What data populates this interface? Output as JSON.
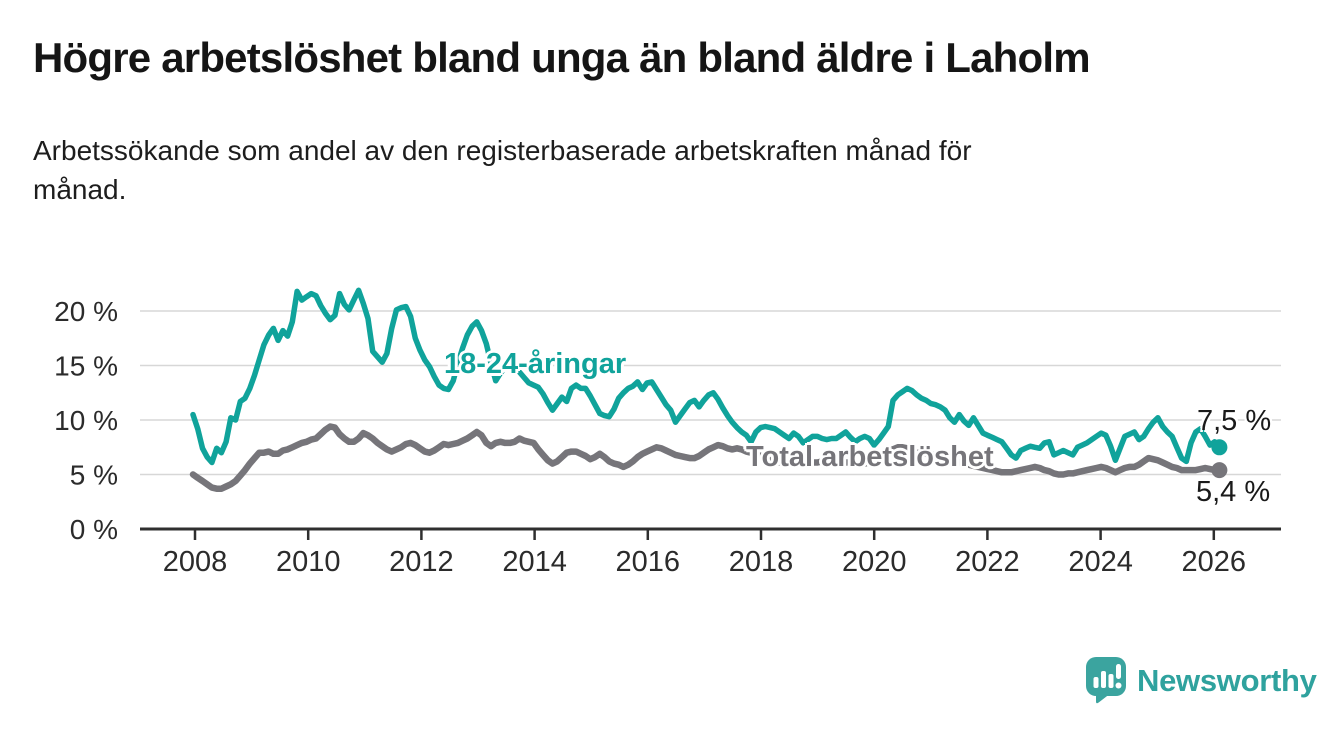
{
  "header": {
    "title": "Högre arbetslöshet bland unga än bland äldre i Laholm",
    "subtitle": "Arbetssökande som andel av den registerbaserade arbetskraften månad för\nmånad."
  },
  "chart_data": {
    "type": "line",
    "title": "Högre arbetslöshet bland unga än bland äldre i Laholm",
    "unit": "%",
    "frequency": "monthly",
    "x_start": "2008-01",
    "x_end": "2026-02",
    "grid": true,
    "ylim": [
      0,
      22.5
    ],
    "y_tick_values": [
      0,
      5,
      10,
      15,
      20
    ],
    "y_tick_suffix": " %",
    "x_tick_years": [
      2008,
      2010,
      2012,
      2014,
      2016,
      2018,
      2020,
      2022,
      2024,
      2026
    ],
    "series": [
      {
        "name": "18-24-åringar",
        "color": "#10a39b",
        "end_label": "7,5 %",
        "end_value": 7.5,
        "values": [
          10.5,
          9.2,
          7.4,
          6.6,
          6.1,
          7.4,
          7.0,
          8.0,
          10.2,
          10.0,
          11.7,
          12.0,
          12.9,
          14.1,
          15.5,
          16.9,
          17.8,
          18.4,
          17.3,
          18.2,
          17.7,
          19.0,
          21.8,
          21.0,
          21.3,
          21.6,
          21.4,
          20.5,
          19.8,
          19.2,
          19.6,
          21.6,
          20.6,
          20.1,
          21.0,
          21.9,
          20.7,
          19.3,
          16.3,
          15.8,
          15.3,
          16.1,
          18.4,
          20.1,
          20.3,
          20.4,
          19.5,
          17.5,
          16.4,
          15.5,
          14.9,
          14.0,
          13.2,
          12.9,
          12.8,
          13.6,
          15.2,
          16.6,
          17.8,
          18.6,
          19.0,
          18.2,
          17.0,
          15.2,
          13.6,
          14.3,
          14.9,
          15.1,
          14.8,
          14.4,
          13.9,
          13.4,
          13.2,
          13.0,
          12.4,
          11.6,
          10.9,
          11.5,
          12.1,
          11.7,
          12.9,
          13.2,
          12.9,
          12.9,
          12.2,
          11.4,
          10.6,
          10.4,
          10.3,
          11.0,
          12.0,
          12.5,
          12.9,
          13.1,
          13.5,
          12.8,
          13.4,
          13.5,
          12.8,
          12.1,
          11.4,
          10.9,
          9.8,
          10.4,
          11.0,
          11.6,
          11.8,
          11.2,
          11.8,
          12.3,
          12.5,
          11.9,
          11.1,
          10.4,
          9.8,
          9.3,
          8.9,
          8.6,
          8.0,
          8.9,
          9.3,
          9.4,
          9.3,
          9.2,
          8.9,
          8.6,
          8.3,
          8.8,
          8.5,
          7.9,
          8.2,
          8.5,
          8.5,
          8.3,
          8.2,
          8.3,
          8.3,
          8.6,
          8.9,
          8.4,
          8.0,
          8.3,
          8.5,
          8.3,
          7.7,
          8.2,
          8.8,
          9.4,
          11.8,
          12.3,
          12.6,
          12.9,
          12.7,
          12.3,
          12.0,
          11.8,
          11.5,
          11.4,
          11.2,
          10.9,
          10.2,
          9.8,
          10.5,
          9.9,
          9.5,
          10.2,
          9.5,
          8.8,
          8.6,
          8.4,
          8.2,
          8.0,
          7.4,
          6.8,
          6.5,
          7.2,
          7.4,
          7.6,
          7.5,
          7.4,
          7.9,
          8.0,
          6.8,
          7.0,
          7.2,
          7.0,
          6.8,
          7.5,
          7.7,
          7.9,
          8.2,
          8.5,
          8.8,
          8.6,
          7.6,
          6.3,
          7.4,
          8.5,
          8.7,
          8.9,
          8.2,
          8.5,
          9.2,
          9.8,
          10.2,
          9.4,
          8.9,
          8.5,
          7.5,
          6.5,
          6.2,
          7.9,
          8.9,
          9.2,
          8.5,
          7.7,
          8.0,
          7.5
        ]
      },
      {
        "name": "Total arbetslöshet",
        "color": "#76757a",
        "end_label": "5,4 %",
        "end_value": 5.4,
        "values": [
          5.0,
          4.7,
          4.4,
          4.1,
          3.8,
          3.7,
          3.7,
          3.9,
          4.1,
          4.4,
          4.9,
          5.4,
          6.0,
          6.5,
          7.0,
          7.0,
          7.1,
          6.9,
          6.9,
          7.2,
          7.3,
          7.5,
          7.7,
          7.9,
          8.0,
          8.2,
          8.3,
          8.7,
          9.1,
          9.4,
          9.3,
          8.7,
          8.3,
          8.0,
          8.0,
          8.3,
          8.8,
          8.6,
          8.3,
          7.9,
          7.6,
          7.3,
          7.1,
          7.3,
          7.5,
          7.8,
          7.9,
          7.7,
          7.4,
          7.1,
          7.0,
          7.2,
          7.5,
          7.8,
          7.7,
          7.8,
          7.9,
          8.1,
          8.3,
          8.6,
          8.9,
          8.6,
          7.9,
          7.6,
          7.9,
          8.0,
          7.9,
          7.9,
          8.0,
          8.3,
          8.1,
          8.0,
          7.9,
          7.3,
          6.8,
          6.3,
          6.0,
          6.2,
          6.6,
          7.0,
          7.1,
          7.1,
          6.9,
          6.7,
          6.4,
          6.6,
          6.9,
          6.6,
          6.2,
          6.0,
          5.9,
          5.7,
          5.9,
          6.2,
          6.6,
          6.9,
          7.1,
          7.3,
          7.5,
          7.4,
          7.2,
          7.0,
          6.8,
          6.7,
          6.6,
          6.5,
          6.5,
          6.7,
          7.0,
          7.3,
          7.5,
          7.7,
          7.6,
          7.4,
          7.3,
          7.4,
          7.3,
          7.1,
          7.0,
          6.9,
          6.7,
          6.5,
          6.3,
          6.2,
          6.1,
          6.0,
          6.0,
          6.1,
          6.2,
          6.2,
          6.1,
          6.1,
          6.1,
          6.2,
          6.2,
          6.1,
          6.0,
          6.0,
          6.1,
          6.1,
          6.0,
          5.9,
          6.0,
          6.1,
          6.2,
          6.3,
          6.6,
          7.0,
          7.3,
          7.5,
          7.5,
          7.4,
          7.2,
          7.0,
          6.9,
          6.9,
          6.8,
          6.8,
          6.7,
          6.5,
          6.3,
          6.2,
          6.1,
          6.0,
          5.9,
          5.8,
          5.7,
          5.6,
          5.5,
          5.4,
          5.3,
          5.2,
          5.2,
          5.2,
          5.3,
          5.4,
          5.5,
          5.6,
          5.7,
          5.6,
          5.4,
          5.3,
          5.1,
          5.0,
          5.0,
          5.1,
          5.1,
          5.2,
          5.3,
          5.4,
          5.5,
          5.6,
          5.7,
          5.6,
          5.4,
          5.2,
          5.4,
          5.6,
          5.7,
          5.7,
          5.9,
          6.2,
          6.5,
          6.4,
          6.3,
          6.1,
          5.9,
          5.7,
          5.6,
          5.4,
          5.4,
          5.4,
          5.4,
          5.5,
          5.6,
          5.5,
          5.4,
          5.4
        ]
      }
    ],
    "legend_position": "inline-labels",
    "colors": {
      "young": "#10a39b",
      "total": "#76757a",
      "grid": "#d7d7d7",
      "axis": "#2f2f2f",
      "text": "#1a1a1a"
    }
  },
  "footer": {
    "brand": "Newsworthy",
    "logo": "speech-bubble-bar-chart-icon"
  }
}
